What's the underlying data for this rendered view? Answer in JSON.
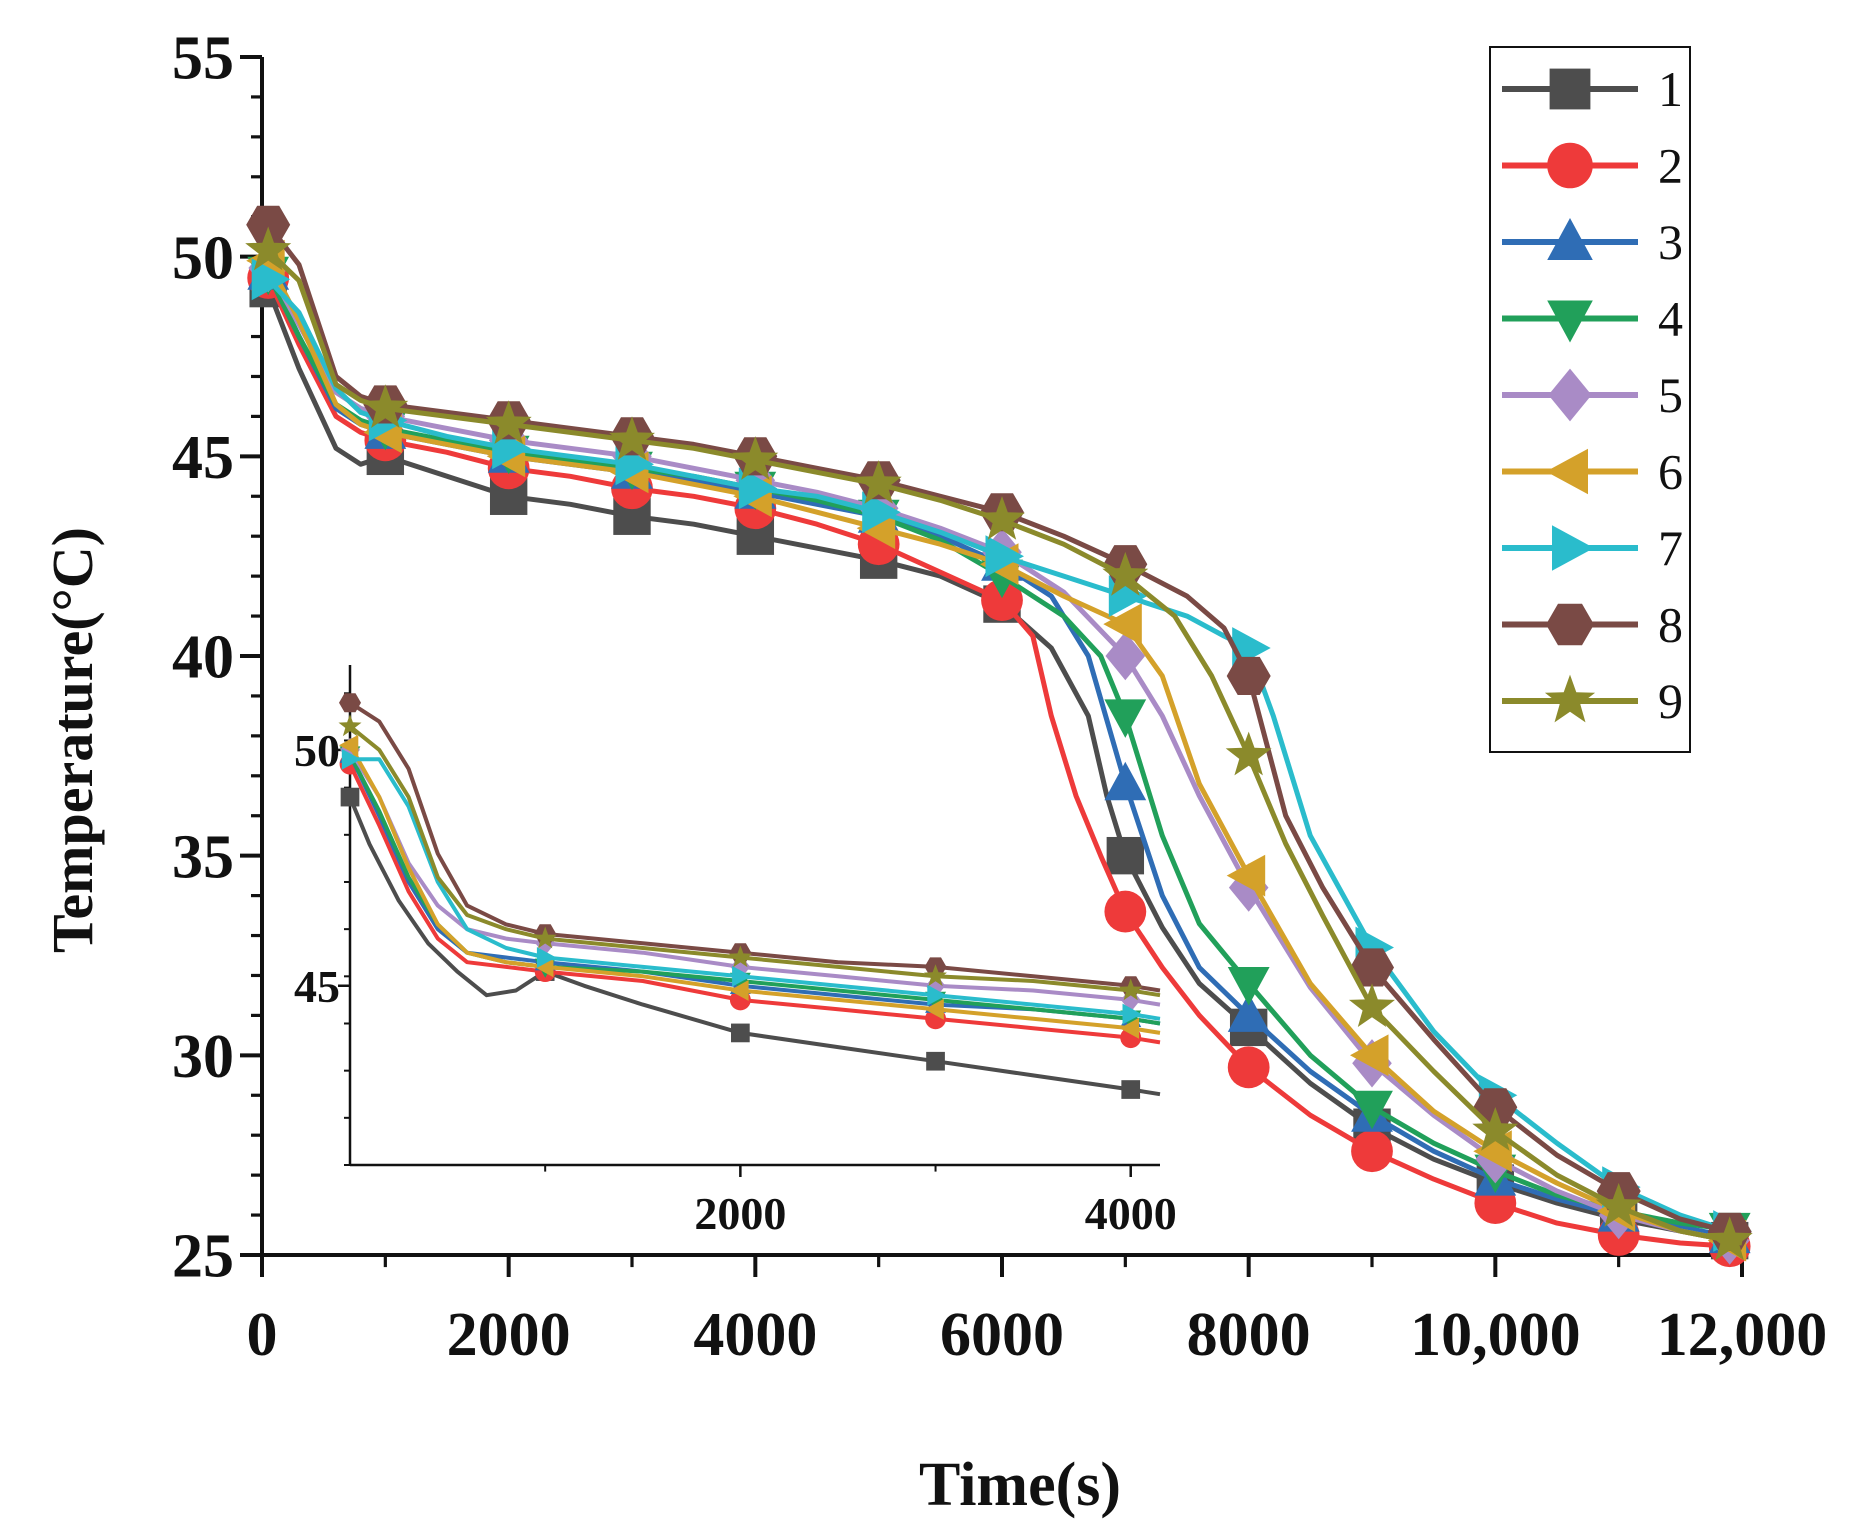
{
  "chart_data": [
    {
      "type": "line",
      "panel": "main",
      "xlabel": "Time(s)",
      "ylabel": "Temperature(°C)",
      "xlim": [
        0,
        12000
      ],
      "ylim": [
        25,
        55
      ],
      "xticks": [
        0,
        2000,
        4000,
        6000,
        8000,
        10000,
        12000
      ],
      "xtick_labels": [
        "0",
        "2000",
        "4000",
        "6000",
        "8000",
        "10,000",
        "12,000"
      ],
      "yticks": [
        25,
        30,
        35,
        40,
        45,
        50,
        55
      ],
      "ytick_labels": [
        "25",
        "30",
        "35",
        "40",
        "45",
        "50",
        "55"
      ],
      "legend_position": "top-right",
      "series": [
        {
          "name": "1",
          "color": "#4d4d4d",
          "marker": "square",
          "x": [
            0,
            300,
            600,
            800,
            1000,
            1500,
            2000,
            2500,
            3000,
            3500,
            4000,
            4500,
            5000,
            5500,
            6000,
            6400,
            6700,
            6850,
            7000,
            7300,
            7600,
            8000,
            8500,
            9000,
            9500,
            10000,
            10500,
            11000,
            11500,
            12000
          ],
          "y": [
            49.6,
            47.2,
            45.2,
            44.8,
            45.0,
            44.5,
            44.0,
            43.8,
            43.5,
            43.3,
            43.0,
            42.7,
            42.4,
            42.0,
            41.3,
            40.2,
            38.5,
            36.5,
            35.0,
            33.2,
            31.8,
            30.7,
            29.3,
            28.2,
            27.4,
            26.8,
            26.3,
            25.9,
            25.6,
            25.3
          ]
        },
        {
          "name": "2",
          "color": "#ee3a3a",
          "marker": "circle",
          "x": [
            0,
            300,
            600,
            800,
            1000,
            1500,
            2000,
            2500,
            3000,
            3500,
            4000,
            4500,
            5000,
            5500,
            6000,
            6250,
            6400,
            6600,
            6800,
            7000,
            7300,
            7600,
            8000,
            8500,
            9000,
            9500,
            10000,
            10500,
            11000,
            11500,
            12000
          ],
          "y": [
            49.8,
            47.8,
            46.0,
            45.6,
            45.4,
            45.1,
            44.7,
            44.5,
            44.2,
            44.0,
            43.7,
            43.3,
            42.8,
            42.1,
            41.4,
            40.5,
            38.5,
            36.5,
            35.0,
            33.6,
            32.2,
            31.0,
            29.7,
            28.5,
            27.6,
            26.9,
            26.3,
            25.8,
            25.5,
            25.3,
            25.2
          ]
        },
        {
          "name": "3",
          "color": "#2f6db5",
          "marker": "triangle-up",
          "x": [
            0,
            300,
            600,
            800,
            1000,
            1500,
            2000,
            2500,
            3000,
            3500,
            4000,
            4500,
            5000,
            5500,
            6000,
            6400,
            6700,
            7000,
            7300,
            7600,
            8000,
            8500,
            9000,
            9500,
            10000,
            10500,
            11000,
            11500,
            12000
          ],
          "y": [
            49.9,
            48.0,
            46.2,
            45.8,
            45.6,
            45.3,
            45.0,
            44.8,
            44.6,
            44.4,
            44.1,
            43.8,
            43.5,
            43.0,
            42.3,
            41.5,
            40.0,
            36.8,
            34.0,
            32.2,
            31.0,
            29.6,
            28.5,
            27.6,
            26.9,
            26.4,
            26.0,
            25.7,
            25.4
          ]
        },
        {
          "name": "4",
          "color": "#21a05a",
          "marker": "triangle-down",
          "x": [
            0,
            300,
            600,
            800,
            1000,
            1500,
            2000,
            2500,
            3000,
            3500,
            4000,
            4500,
            5000,
            5500,
            6000,
            6500,
            6800,
            7000,
            7300,
            7600,
            8000,
            8500,
            9000,
            9500,
            10000,
            10500,
            11000,
            11500,
            12000
          ],
          "y": [
            49.9,
            48.0,
            46.3,
            45.9,
            45.7,
            45.4,
            45.1,
            44.9,
            44.7,
            44.5,
            44.2,
            43.9,
            43.5,
            42.9,
            42.0,
            41.0,
            40.0,
            38.5,
            35.5,
            33.3,
            31.8,
            30.0,
            28.7,
            27.8,
            27.1,
            26.5,
            26.1,
            25.8,
            25.6
          ]
        },
        {
          "name": "5",
          "color": "#a98bc6",
          "marker": "diamond",
          "x": [
            0,
            300,
            600,
            800,
            1000,
            1500,
            2000,
            2500,
            3000,
            3500,
            4000,
            4500,
            5000,
            5500,
            6000,
            6500,
            7000,
            7300,
            7600,
            8000,
            8500,
            9000,
            9500,
            10000,
            10500,
            11000,
            11500,
            12000
          ],
          "y": [
            50.0,
            48.3,
            46.6,
            46.2,
            46.0,
            45.7,
            45.4,
            45.2,
            45.0,
            44.7,
            44.4,
            44.1,
            43.7,
            43.2,
            42.6,
            41.6,
            40.0,
            38.5,
            36.5,
            34.2,
            31.7,
            29.8,
            28.5,
            27.4,
            26.6,
            26.0,
            25.6,
            25.3
          ]
        },
        {
          "name": "6",
          "color": "#d4a12a",
          "marker": "triangle-left",
          "x": [
            0,
            300,
            600,
            800,
            1000,
            1500,
            2000,
            2500,
            3000,
            3500,
            4000,
            4500,
            5000,
            5500,
            6000,
            6500,
            7000,
            7300,
            7600,
            8000,
            8500,
            9000,
            9500,
            10000,
            10500,
            11000,
            11500,
            12000
          ],
          "y": [
            50.2,
            48.4,
            46.3,
            45.8,
            45.6,
            45.3,
            45.0,
            44.8,
            44.6,
            44.3,
            44.0,
            43.6,
            43.2,
            42.8,
            42.3,
            41.5,
            40.8,
            39.5,
            36.8,
            34.5,
            31.8,
            30.0,
            28.6,
            27.6,
            26.8,
            26.1,
            25.6,
            25.3
          ]
        },
        {
          "name": "7",
          "color": "#2abccc",
          "marker": "triangle-right",
          "x": [
            0,
            300,
            600,
            800,
            1000,
            1500,
            2000,
            2500,
            3000,
            3500,
            4000,
            4500,
            5000,
            5500,
            6000,
            6500,
            7000,
            7500,
            7800,
            8000,
            8200,
            8500,
            9000,
            9500,
            10000,
            10500,
            11000,
            11500,
            12000
          ],
          "y": [
            49.6,
            48.6,
            46.7,
            46.1,
            45.9,
            45.5,
            45.2,
            45.0,
            44.8,
            44.5,
            44.2,
            44.0,
            43.6,
            43.1,
            42.5,
            42.0,
            41.5,
            41.0,
            40.5,
            40.2,
            38.5,
            35.5,
            32.7,
            30.6,
            29.0,
            27.8,
            26.7,
            26.0,
            25.5
          ]
        },
        {
          "name": "8",
          "color": "#7a4a45",
          "marker": "hexagon",
          "x": [
            0,
            300,
            600,
            800,
            1000,
            1500,
            2000,
            2500,
            3000,
            3500,
            4000,
            4500,
            5000,
            5500,
            6000,
            6500,
            7000,
            7500,
            7800,
            8000,
            8300,
            8600,
            9000,
            9500,
            10000,
            10500,
            11000,
            11500,
            12000
          ],
          "y": [
            51.0,
            49.8,
            47.0,
            46.5,
            46.3,
            46.1,
            45.9,
            45.7,
            45.5,
            45.3,
            45.0,
            44.7,
            44.4,
            44.0,
            43.6,
            43.0,
            42.3,
            41.5,
            40.7,
            39.5,
            36.0,
            34.2,
            32.2,
            30.4,
            28.7,
            27.5,
            26.6,
            25.9,
            25.5
          ]
        },
        {
          "name": "9",
          "color": "#8b8a2b",
          "marker": "star",
          "x": [
            0,
            300,
            600,
            800,
            1000,
            1500,
            2000,
            2500,
            3000,
            3500,
            4000,
            4500,
            5000,
            5500,
            6000,
            6500,
            7000,
            7400,
            7700,
            8000,
            8300,
            8600,
            9000,
            9500,
            10000,
            10500,
            11000,
            11500,
            12000
          ],
          "y": [
            50.3,
            49.4,
            46.8,
            46.4,
            46.2,
            46.0,
            45.8,
            45.6,
            45.4,
            45.2,
            44.9,
            44.6,
            44.3,
            43.9,
            43.4,
            42.8,
            42.0,
            41.0,
            39.5,
            37.5,
            35.3,
            33.5,
            31.2,
            29.6,
            28.1,
            27.0,
            26.2,
            25.6,
            25.3
          ]
        }
      ]
    },
    {
      "type": "line",
      "panel": "inset",
      "xlim": [
        0,
        4150
      ],
      "ylim": [
        41.2,
        51.8
      ],
      "xticks": [
        2000,
        4000
      ],
      "xtick_labels": [
        "2000",
        "4000"
      ],
      "yticks": [
        45,
        50
      ],
      "ytick_labels": [
        "45",
        "50"
      ],
      "series": [
        {
          "name": "1",
          "color": "#4d4d4d",
          "marker": "square",
          "x": [
            0,
            100,
            250,
            400,
            550,
            700,
            850,
            1000,
            1200,
            1500,
            2000,
            2500,
            3000,
            3500,
            4000,
            4150
          ],
          "y": [
            49.0,
            48.0,
            46.8,
            45.9,
            45.3,
            44.8,
            44.9,
            45.3,
            45.0,
            44.6,
            44.0,
            43.7,
            43.4,
            43.1,
            42.8,
            42.7
          ]
        },
        {
          "name": "2",
          "color": "#ee3a3a",
          "marker": "circle",
          "x": [
            0,
            150,
            300,
            450,
            600,
            800,
            1000,
            1500,
            2000,
            2500,
            3000,
            3500,
            4000,
            4150
          ],
          "y": [
            49.7,
            48.4,
            47.0,
            46.0,
            45.5,
            45.4,
            45.3,
            45.1,
            44.7,
            44.5,
            44.3,
            44.1,
            43.9,
            43.8
          ]
        },
        {
          "name": "3",
          "color": "#2f6db5",
          "marker": "triangle-up",
          "x": [
            0,
            150,
            300,
            450,
            600,
            800,
            1000,
            1500,
            2000,
            2500,
            3000,
            3500,
            4000,
            4150
          ],
          "y": [
            49.9,
            48.6,
            47.2,
            46.2,
            45.7,
            45.6,
            45.5,
            45.3,
            45.0,
            44.8,
            44.6,
            44.5,
            44.3,
            44.2
          ]
        },
        {
          "name": "4",
          "color": "#21a05a",
          "marker": "triangle-down",
          "x": [
            0,
            150,
            300,
            450,
            600,
            800,
            1000,
            1500,
            2000,
            2500,
            3000,
            3500,
            4000,
            4150
          ],
          "y": [
            49.9,
            48.7,
            47.3,
            46.3,
            45.7,
            45.5,
            45.4,
            45.3,
            45.1,
            44.9,
            44.7,
            44.5,
            44.3,
            44.2
          ]
        },
        {
          "name": "5",
          "color": "#a98bc6",
          "marker": "diamond",
          "x": [
            0,
            150,
            300,
            450,
            600,
            800,
            1000,
            1500,
            2000,
            2500,
            3000,
            3500,
            4000,
            4150
          ],
          "y": [
            50.0,
            49.0,
            47.6,
            46.7,
            46.2,
            46.0,
            45.9,
            45.7,
            45.4,
            45.2,
            45.0,
            44.9,
            44.7,
            44.6
          ]
        },
        {
          "name": "6",
          "color": "#d4a12a",
          "marker": "triangle-left",
          "x": [
            0,
            150,
            300,
            450,
            600,
            800,
            1000,
            1500,
            2000,
            2500,
            3000,
            3500,
            4000,
            4150
          ],
          "y": [
            50.1,
            49.0,
            47.5,
            46.3,
            45.7,
            45.5,
            45.4,
            45.2,
            44.9,
            44.7,
            44.5,
            44.3,
            44.1,
            44.0
          ]
        },
        {
          "name": "7",
          "color": "#2abccc",
          "marker": "triangle-right",
          "x": [
            0,
            150,
            300,
            450,
            600,
            800,
            1000,
            1500,
            2000,
            2500,
            3000,
            3500,
            4000,
            4150
          ],
          "y": [
            49.8,
            49.8,
            48.8,
            47.2,
            46.2,
            45.8,
            45.6,
            45.4,
            45.2,
            45.0,
            44.8,
            44.6,
            44.4,
            44.3
          ]
        },
        {
          "name": "8",
          "color": "#7a4a45",
          "marker": "hexagon",
          "x": [
            0,
            150,
            300,
            450,
            600,
            800,
            1000,
            1500,
            2000,
            2500,
            3000,
            3500,
            4000,
            4150
          ],
          "y": [
            51.0,
            50.6,
            49.6,
            47.8,
            46.7,
            46.3,
            46.1,
            45.9,
            45.7,
            45.5,
            45.4,
            45.2,
            45.0,
            44.9
          ]
        },
        {
          "name": "9",
          "color": "#8b8a2b",
          "marker": "star",
          "x": [
            0,
            150,
            300,
            450,
            600,
            800,
            1000,
            1500,
            2000,
            2500,
            3000,
            3500,
            4000,
            4150
          ],
          "y": [
            50.5,
            50.0,
            49.0,
            47.3,
            46.5,
            46.2,
            46.0,
            45.8,
            45.6,
            45.4,
            45.2,
            45.1,
            44.9,
            44.8
          ]
        }
      ]
    }
  ]
}
